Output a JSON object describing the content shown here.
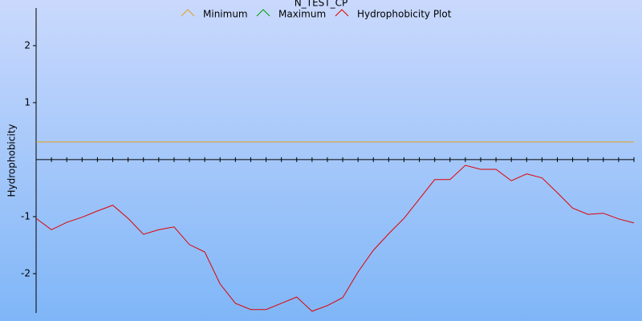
{
  "chart_data": {
    "type": "line",
    "title": "N_TEST_CP",
    "y_label": "Hydrophobicity",
    "categories": [
      null,
      null,
      null,
      null,
      null,
      null,
      null,
      null,
      null,
      null,
      null,
      null,
      null,
      null,
      null,
      null,
      null,
      null,
      null,
      null,
      null,
      null,
      null,
      null,
      null,
      null,
      null,
      null,
      null,
      null,
      null,
      null,
      null,
      null,
      null,
      null,
      null,
      null,
      null,
      null
    ],
    "series": [
      {
        "name": "Minimum",
        "color": "#e0a020",
        "values": [
          0.31,
          0.31,
          0.31,
          0.31,
          0.31,
          0.31,
          0.31,
          0.31,
          0.31,
          0.31,
          0.31,
          0.31,
          0.31,
          0.31,
          0.31,
          0.31,
          0.31,
          0.31,
          0.31,
          0.31,
          0.31,
          0.31,
          0.31,
          0.31,
          0.31,
          0.31,
          0.31,
          0.31,
          0.31,
          0.31,
          0.31,
          0.31,
          0.31,
          0.31,
          0.31,
          0.31,
          0.31,
          0.31,
          0.31,
          0.31
        ]
      },
      {
        "name": "Maximum",
        "color": "#00a000",
        "values": [
          null,
          null,
          null,
          null,
          null,
          null,
          null,
          null,
          null,
          null,
          null,
          null,
          null,
          null,
          null,
          null,
          null,
          null,
          null,
          null,
          null,
          null,
          null,
          null,
          null,
          null,
          null,
          null,
          null,
          null,
          null,
          null,
          null,
          null,
          null,
          null,
          null,
          null,
          null,
          null
        ]
      },
      {
        "name": "Hydrophobicity Plot",
        "color": "#e00000",
        "values": [
          -1.03,
          -1.23,
          -1.1,
          -1.01,
          -0.9,
          -0.8,
          -1.03,
          -1.31,
          -1.23,
          -1.18,
          -1.49,
          -1.62,
          -2.18,
          -2.52,
          -2.63,
          -2.63,
          -2.52,
          -2.41,
          -2.66,
          -2.56,
          -2.42,
          -1.97,
          -1.59,
          -1.3,
          -1.03,
          -0.69,
          -0.35,
          -0.35,
          -0.1,
          -0.17,
          -0.17,
          -0.37,
          -0.25,
          -0.32,
          -0.58,
          -0.85,
          -0.96,
          -0.94,
          -1.04,
          -1.11
        ]
      }
    ],
    "ylim": [
      -2.69,
      2.66
    ],
    "yticks": [
      -2,
      -1,
      1,
      2
    ]
  }
}
